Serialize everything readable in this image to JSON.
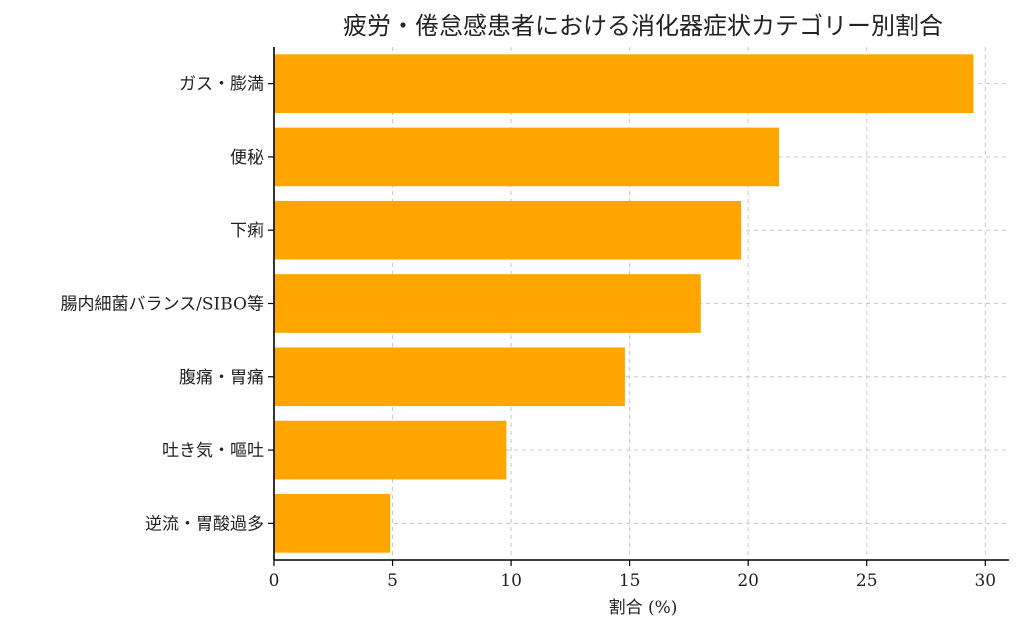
{
  "chart_data": {
    "type": "bar",
    "orientation": "horizontal",
    "title": "疲労・倦怠感患者における消化器症状カテゴリー別割合",
    "xlabel": "割合 (%)",
    "ylabel": "",
    "categories": [
      "ガス・膨満",
      "便秘",
      "下痢",
      "腸内細菌バランス/SIBO等",
      "腹痛・胃痛",
      "吐き気・嘔吐",
      "逆流・胃酸過多"
    ],
    "values": [
      29.5,
      21.3,
      19.7,
      18.0,
      14.8,
      9.8,
      4.9
    ],
    "xlim": [
      0,
      31
    ],
    "xticks": [
      0,
      5,
      10,
      15,
      20,
      25,
      30
    ],
    "grid": true,
    "bar_color": "#FFA500"
  }
}
